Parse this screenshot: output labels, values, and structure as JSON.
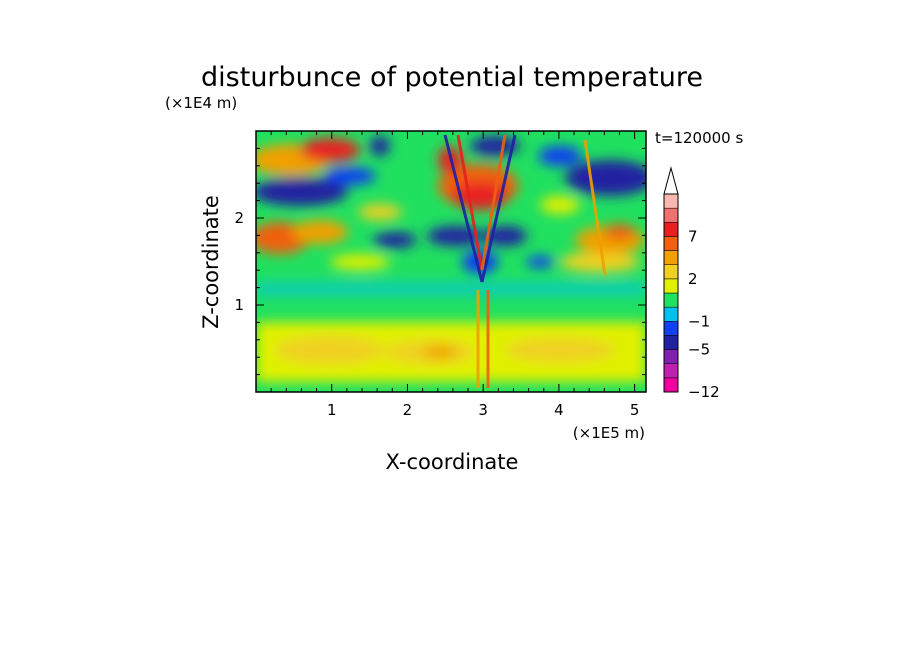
{
  "chart_data": {
    "type": "heatmap",
    "title": "disturbunce of potential temperature",
    "time_label": "t=120000 s",
    "xlabel": "X-coordinate",
    "ylabel": "Z-coordinate",
    "x_unit": "(×1E5 m)",
    "y_unit": "(×1E4 m)",
    "xlim": [
      0,
      5.15
    ],
    "ylim": [
      0,
      3.0
    ],
    "x_ticks": [
      "1",
      "2",
      "3",
      "4",
      "5"
    ],
    "y_ticks": [
      "1",
      "2"
    ],
    "colorbar": {
      "labels": [
        "7",
        "2",
        "−1",
        "−5",
        "−12"
      ],
      "levels": [
        -12,
        -9,
        -7,
        -5,
        -3,
        -1,
        0,
        1,
        2,
        3,
        5,
        7,
        9,
        11
      ],
      "colors": [
        "#f000a0",
        "#c020b0",
        "#8020b0",
        "#2020a0",
        "#1040f0",
        "#00c0f0",
        "#20e060",
        "#e0f000",
        "#f0d020",
        "#f0a000",
        "#f06010",
        "#e82020",
        "#f07070",
        "#f8b8b0"
      ],
      "extend": "max"
    },
    "features": [
      {
        "name": "upper-left cold band",
        "x": 0.6,
        "z": 2.4,
        "sign": "negative"
      },
      {
        "name": "upper warm core",
        "x": 2.9,
        "z": 2.3,
        "sign": "positive"
      },
      {
        "name": "v-shaped cold wave pattern",
        "x": 2.85,
        "z": 1.8,
        "sign": "negative"
      },
      {
        "name": "upper-right cold band",
        "x": 4.6,
        "z": 2.5,
        "sign": "negative"
      },
      {
        "name": "lower warm layer",
        "x": 2.5,
        "z": 0.5,
        "sign": "positive"
      }
    ]
  }
}
